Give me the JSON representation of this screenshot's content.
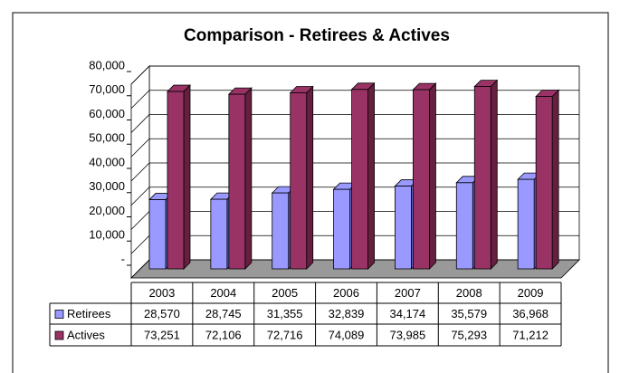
{
  "chart_data": {
    "type": "bar3d",
    "title": "Comparison - Retirees & Actives",
    "categories": [
      "2003",
      "2004",
      "2005",
      "2006",
      "2007",
      "2008",
      "2009"
    ],
    "series": [
      {
        "name": "Retirees",
        "color": "#9999ff",
        "values": [
          28570,
          28745,
          31355,
          32839,
          34174,
          35579,
          36968
        ],
        "value_labels": [
          "28,570",
          "28,745",
          "31,355",
          "32,839",
          "34,174",
          "35,579",
          "36,968"
        ]
      },
      {
        "name": "Actives",
        "color": "#993366",
        "values": [
          73251,
          72106,
          72716,
          74089,
          73985,
          75293,
          71212
        ],
        "value_labels": [
          "73,251",
          "72,106",
          "72,716",
          "74,089",
          "73,985",
          "75,293",
          "71,212"
        ]
      }
    ],
    "ylim": [
      0,
      80000
    ],
    "yticks": [
      {
        "value": 0,
        "label": "-"
      },
      {
        "value": 10000,
        "label": "10,000"
      },
      {
        "value": 20000,
        "label": "20,000"
      },
      {
        "value": 30000,
        "label": "30,000"
      },
      {
        "value": 40000,
        "label": "40,000"
      },
      {
        "value": 50000,
        "label": "50,000"
      },
      {
        "value": 60000,
        "label": "60,000"
      },
      {
        "value": 70000,
        "label": "70,000"
      },
      {
        "value": 80000,
        "label": "80,000"
      }
    ],
    "grid": true
  }
}
